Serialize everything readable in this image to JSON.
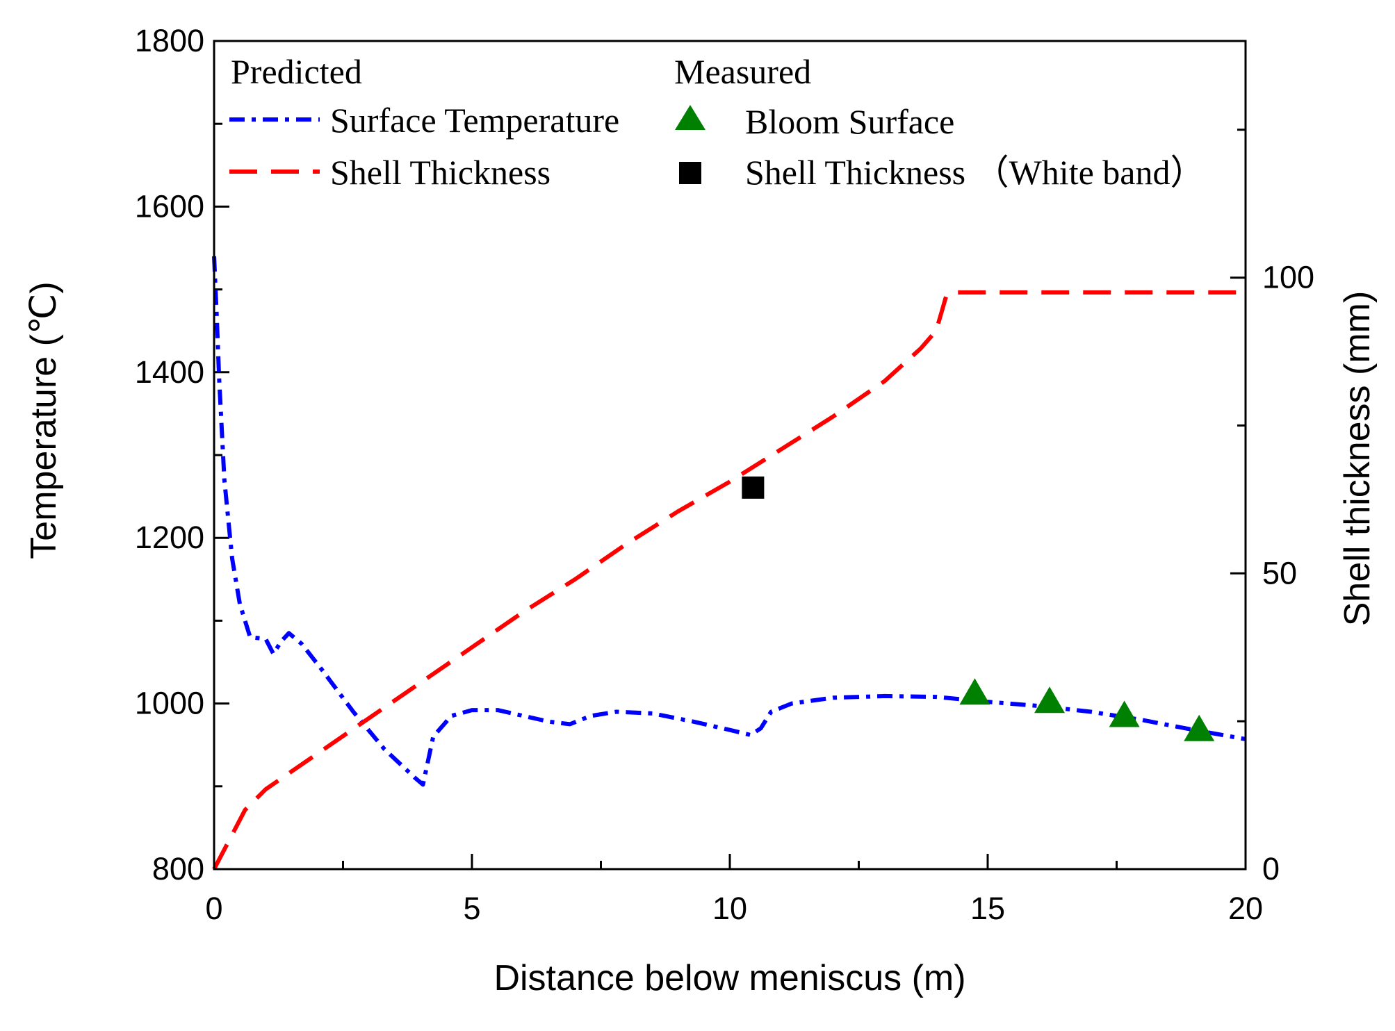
{
  "chart_data": {
    "type": "line",
    "xlabel": "Distance below meniscus (m)",
    "ylabel_left": "Temperature (℃)",
    "ylabel_right": "Shell thickness (mm)",
    "xlim": [
      0,
      20
    ],
    "ylim_left": [
      800,
      1800
    ],
    "ylim_right": [
      0,
      140
    ],
    "x_ticks": [
      0,
      5,
      10,
      15,
      20
    ],
    "y_left_ticks": [
      800,
      1000,
      1200,
      1400,
      1600,
      1800
    ],
    "y_right_ticks": [
      0,
      50,
      100
    ],
    "legend": {
      "predicted_heading": "Predicted",
      "measured_heading": "Measured",
      "predicted_items": [
        {
          "label": "Surface Temperature",
          "style": "dash-dot",
          "color": "#0000ff"
        },
        {
          "label": "Shell Thickness",
          "style": "dashed",
          "color": "#ff0000"
        }
      ],
      "measured_items": [
        {
          "label": "Bloom Surface",
          "marker": "triangle",
          "color": "#008000"
        },
        {
          "label": "Shell Thickness （White band）",
          "marker": "square",
          "color": "#000000"
        }
      ]
    },
    "series": [
      {
        "name": "Surface Temperature",
        "axis": "left",
        "color": "#0000ff",
        "x": [
          0,
          0.05,
          0.1,
          0.2,
          0.35,
          0.5,
          0.7,
          1.0,
          1.15,
          1.3,
          1.45,
          1.7,
          2.1,
          2.7,
          3.3,
          3.9,
          4.05,
          4.25,
          4.6,
          5.0,
          5.5,
          6.0,
          6.5,
          6.9,
          7.3,
          7.8,
          8.5,
          9.3,
          10.0,
          10.4,
          10.6,
          10.8,
          11.2,
          12.0,
          13.0,
          14.0,
          15.0,
          16.0,
          17.0,
          18.0,
          19.0,
          20.0
        ],
        "y": [
          1540,
          1470,
          1390,
          1270,
          1175,
          1120,
          1080,
          1078,
          1060,
          1075,
          1085,
          1072,
          1040,
          990,
          945,
          910,
          902,
          960,
          985,
          992,
          992,
          985,
          978,
          975,
          985,
          990,
          988,
          978,
          968,
          962,
          970,
          990,
          1000,
          1007,
          1009,
          1008,
          1002,
          997,
          990,
          980,
          968,
          957
        ]
      },
      {
        "name": "Shell Thickness",
        "axis": "right",
        "color": "#ff0000",
        "x": [
          0,
          0.3,
          0.6,
          1.0,
          1.5,
          2.0,
          3.0,
          4.0,
          5.0,
          6.0,
          7.0,
          8.0,
          9.0,
          10.0,
          11.0,
          12.0,
          13.0,
          13.7,
          14.0,
          14.1,
          14.2,
          14.3,
          15.0,
          16.0,
          17.0,
          18.0,
          19.0,
          20.0
        ],
        "y": [
          0,
          5,
          10,
          13.5,
          16.5,
          19.5,
          25.5,
          31.5,
          37.5,
          43.5,
          49,
          55,
          60.5,
          65.5,
          71,
          76.5,
          82.5,
          88,
          91,
          94,
          97,
          97.5,
          97.5,
          97.5,
          97.5,
          97.5,
          97.5,
          97.5
        ]
      }
    ],
    "measured": {
      "bloom_surface": {
        "axis": "left",
        "x": [
          14.75,
          16.2,
          17.65,
          19.1
        ],
        "y": [
          1012,
          1002,
          985,
          968
        ]
      },
      "shell_thickness_white_band": {
        "axis": "right",
        "x": [
          10.45
        ],
        "y": [
          64.5
        ]
      }
    }
  }
}
